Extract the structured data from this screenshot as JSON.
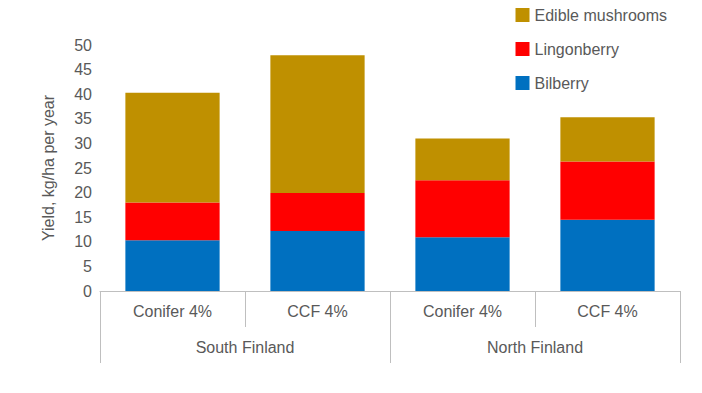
{
  "chart_data": {
    "type": "bar",
    "stacked": true,
    "y_label": "Yield, kg/ha per year",
    "categories": [
      "Conifer 4%",
      "CCF 4%",
      "Conifer 4%",
      "CCF 4%"
    ],
    "category_groups": [
      "South Finland",
      "South Finland",
      "North Finland",
      "North Finland"
    ],
    "series": [
      {
        "name": "Bilberry",
        "color": "#0070C0",
        "values": [
          10.3,
          12.2,
          10.9,
          14.5
        ]
      },
      {
        "name": "Lingonberry",
        "color": "#FF0000",
        "values": [
          7.7,
          7.7,
          11.6,
          11.8
        ]
      },
      {
        "name": "Edible mushrooms",
        "color": "#BF9000",
        "values": [
          22.3,
          28.0,
          8.5,
          9.0
        ]
      }
    ],
    "ylim": [
      0,
      50
    ],
    "yticks": [
      0,
      5,
      10,
      15,
      20,
      25,
      30,
      35,
      40,
      45,
      50
    ],
    "grid": false,
    "legend": "top-right"
  }
}
